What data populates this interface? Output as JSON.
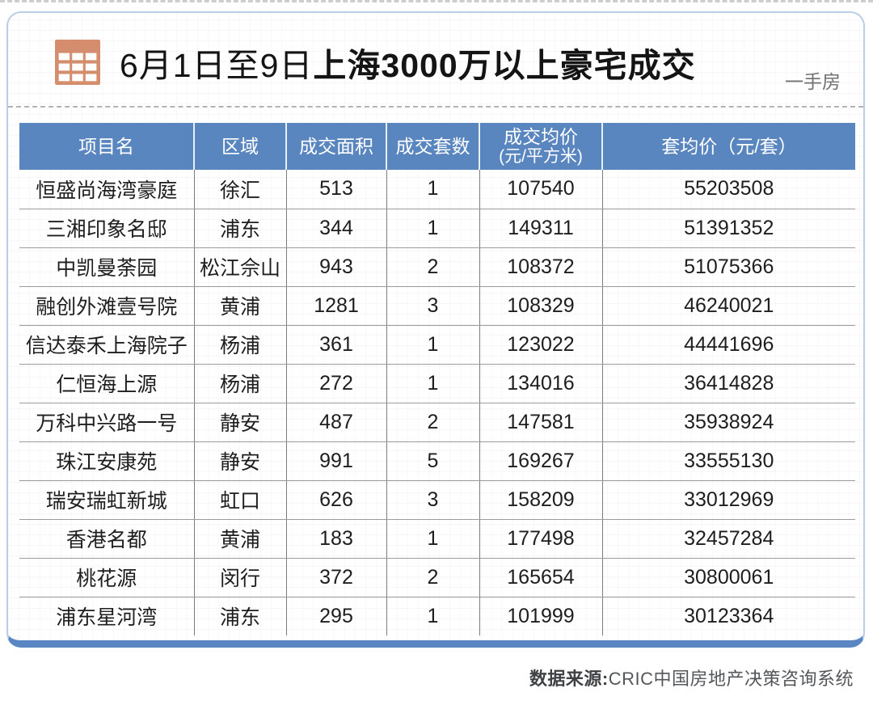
{
  "page": {
    "title_prefix": "6月1日至9日",
    "title_emphasis": "上海3000万以上豪宅成交",
    "tag": "一手房"
  },
  "footer": {
    "source_label": "数据来源:",
    "source_text": "CRIC中国房地产决策咨询系统"
  },
  "colors": {
    "header_blue": "#5a86bf",
    "card_border": "#b9cee7",
    "bottom_bar_blue": "#5a87c3",
    "icon_salmon": "#d58e6d",
    "tag_gray": "#6f7173"
  },
  "chart_data": {
    "type": "table",
    "title": "6月1日至9日上海3000万以上豪宅成交",
    "subtitle": "一手房",
    "source": "数据来源:CRIC中国房地产决策咨询系统",
    "columns": [
      {
        "label": "项目名",
        "sub": ""
      },
      {
        "label": "区域",
        "sub": ""
      },
      {
        "label": "成交面积",
        "sub": ""
      },
      {
        "label": "成交套数",
        "sub": ""
      },
      {
        "label": "成交均价",
        "sub": "(元/平方米)"
      },
      {
        "label": "套均价（元/套）",
        "sub": ""
      }
    ],
    "rows": [
      [
        "恒盛尚海湾豪庭",
        "徐汇",
        "513",
        "1",
        "107540",
        "55203508"
      ],
      [
        "三湘印象名邸",
        "浦东",
        "344",
        "1",
        "149311",
        "51391352"
      ],
      [
        "中凯曼荼园",
        "松江佘山",
        "943",
        "2",
        "108372",
        "51075366"
      ],
      [
        "融创外滩壹号院",
        "黄浦",
        "1281",
        "3",
        "108329",
        "46240021"
      ],
      [
        "信达泰禾上海院子",
        "杨浦",
        "361",
        "1",
        "123022",
        "44441696"
      ],
      [
        "仁恒海上源",
        "杨浦",
        "272",
        "1",
        "134016",
        "36414828"
      ],
      [
        "万科中兴路一号",
        "静安",
        "487",
        "2",
        "147581",
        "35938924"
      ],
      [
        "珠江安康苑",
        "静安",
        "991",
        "5",
        "169267",
        "33555130"
      ],
      [
        "瑞安瑞虹新城",
        "虹口",
        "626",
        "3",
        "158209",
        "33012969"
      ],
      [
        "香港名都",
        "黄浦",
        "183",
        "1",
        "177498",
        "32457284"
      ],
      [
        "桃花源",
        "闵行",
        "372",
        "2",
        "165654",
        "30800061"
      ],
      [
        "浦东星河湾",
        "浦东",
        "295",
        "1",
        "101999",
        "30123364"
      ]
    ]
  }
}
